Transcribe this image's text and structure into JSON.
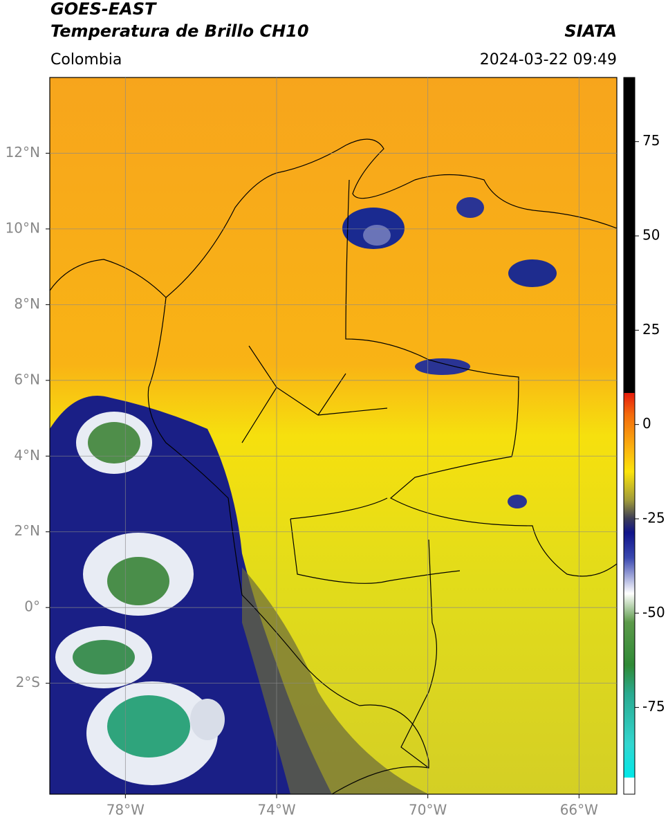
{
  "header": {
    "title": "GOES-EAST",
    "subtitle": "Temperatura de Brillo CH10",
    "source": "SIATA",
    "region": "Colombia",
    "datetime": "2024-03-22 09:49"
  },
  "map": {
    "lon_range": [
      -80,
      -65
    ],
    "lat_range": [
      -4.93,
      14
    ],
    "lon_ticks": [
      {
        "value": -78,
        "label": "78°W"
      },
      {
        "value": -74,
        "label": "74°W"
      },
      {
        "value": -70,
        "label": "70°W"
      },
      {
        "value": -66,
        "label": "66°W"
      }
    ],
    "lat_ticks": [
      {
        "value": 12,
        "label": "12°N"
      },
      {
        "value": 10,
        "label": "10°N"
      },
      {
        "value": 8,
        "label": "8°N"
      },
      {
        "value": 6,
        "label": "6°N"
      },
      {
        "value": 4,
        "label": "4°N"
      },
      {
        "value": 2,
        "label": "2°N"
      },
      {
        "value": 0,
        "label": "0°"
      },
      {
        "value": -2,
        "label": "2°S"
      }
    ]
  },
  "colorbar": {
    "range": [
      -98,
      92
    ],
    "ticks": [
      75,
      50,
      25,
      0,
      -25,
      -50,
      -75
    ]
  }
}
